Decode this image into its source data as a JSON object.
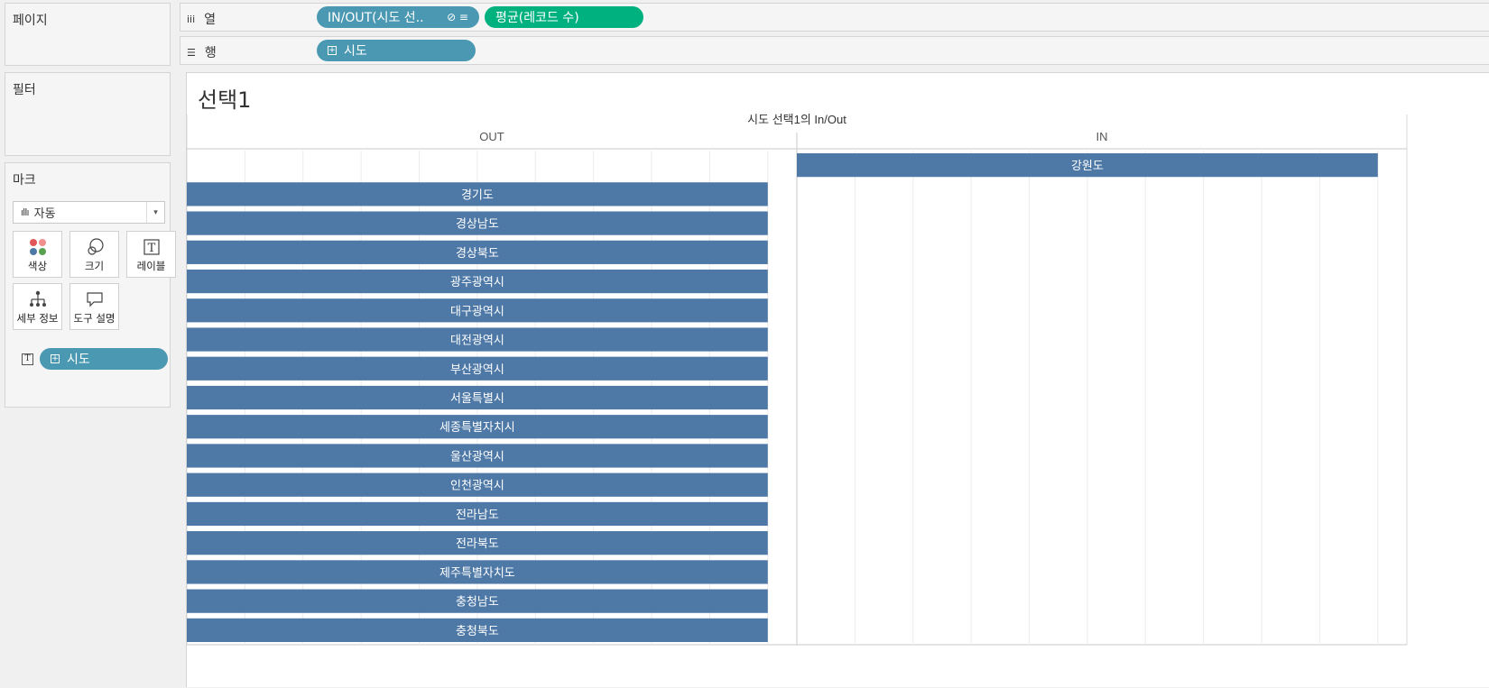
{
  "left_panels": {
    "pages_title": "페이지",
    "filters_title": "필터",
    "marks_title": "마크",
    "mark_type": "자동",
    "buttons": {
      "color": "색상",
      "size": "크기",
      "label": "레이블",
      "detail": "세부 정보",
      "tooltip": "도구 설명"
    },
    "label_pill": "시도"
  },
  "shelves": {
    "columns_label": "열",
    "rows_label": "행",
    "columns_pills": [
      "IN/OUT(시도 선..",
      "평균(레코드 수)"
    ],
    "rows_pill": "시도"
  },
  "sheet": {
    "title": "선택1"
  },
  "colors": {
    "bar": "#4e79a7",
    "pill_blue": "#4a98b2",
    "pill_green": "#00b180"
  },
  "chart_data": {
    "type": "bar",
    "title": "시도 선택1의 In/Out",
    "column_headers": [
      "OUT",
      "IN"
    ],
    "categories": [
      "강원도",
      "경기도",
      "경상남도",
      "경상북도",
      "광주광역시",
      "대구광역시",
      "대전광역시",
      "부산광역시",
      "서울특별시",
      "세종특별자치시",
      "울산광역시",
      "인천광역시",
      "전라남도",
      "전라북도",
      "제주특별자치도",
      "충청남도",
      "충청북도"
    ],
    "series": [
      {
        "name": "OUT",
        "values": [
          0,
          1,
          1,
          1,
          1,
          1,
          1,
          1,
          1,
          1,
          1,
          1,
          1,
          1,
          1,
          1,
          1
        ]
      },
      {
        "name": "IN",
        "values": [
          1,
          0,
          0,
          0,
          0,
          0,
          0,
          0,
          0,
          0,
          0,
          0,
          0,
          0,
          0,
          0,
          0
        ]
      }
    ],
    "xlim": [
      0,
      1.05
    ],
    "grid": true
  }
}
